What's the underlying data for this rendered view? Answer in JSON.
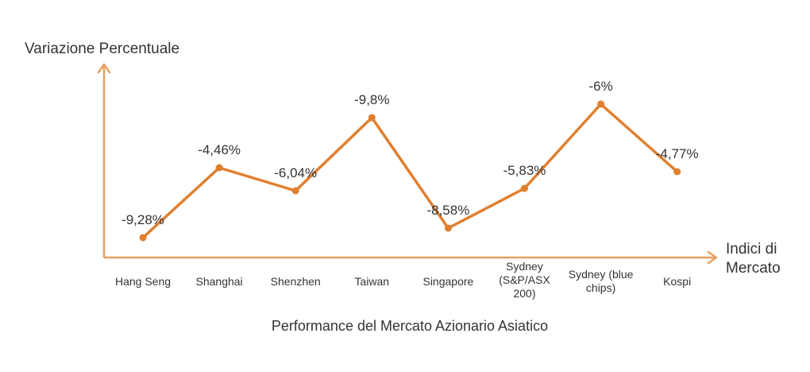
{
  "chart_data": {
    "type": "line",
    "title": "Performance del Mercato Azionario Asiatico",
    "xlabel": "Indici di Mercato",
    "ylabel": "Variazione Percentuale",
    "categories": [
      "Hang Seng",
      "Shanghai",
      "Shenzhen",
      "Taiwan",
      "Singapore",
      "Sydney (S&P/ASX 200)",
      "Sydney (blue chips)",
      "Kospi"
    ],
    "values": [
      -9.28,
      -4.46,
      -6.04,
      -9.8,
      -8.58,
      -5.83,
      -6,
      -4.77
    ],
    "data_labels": [
      "-9,28%",
      "-4,46%",
      "-6,04%",
      "-9,8%",
      "-8,58%",
      "-5,83%",
      "-6%",
      "-4,77%"
    ],
    "grid": false,
    "legend": "none",
    "colors": {
      "line": "#e07f2f",
      "axis": "#e8a060",
      "text": "#333333"
    }
  }
}
